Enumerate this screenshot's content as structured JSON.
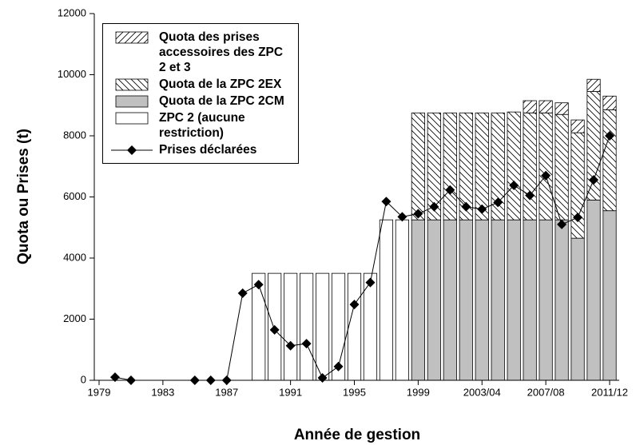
{
  "chart_data": {
    "type": "bar",
    "x_label": "Année de gestion",
    "y_label": "Quota ou Prises (t)",
    "categories": [
      "1979",
      null,
      null,
      null,
      "1983",
      null,
      null,
      null,
      "1987",
      null,
      null,
      null,
      "1991",
      null,
      null,
      null,
      "1995",
      null,
      null,
      null,
      "1999",
      null,
      null,
      null,
      "2003/04",
      null,
      null,
      null,
      "2007/08",
      null,
      null,
      null,
      "2011/12"
    ],
    "stacked": true,
    "series": [
      {
        "name": "ZPC 2 (aucune restriction)",
        "color": "#ffffff",
        "pattern": "solid",
        "values": [
          null,
          null,
          null,
          null,
          null,
          null,
          null,
          null,
          null,
          null,
          3500,
          3500,
          3500,
          3500,
          3500,
          3500,
          3500,
          3500,
          5250,
          5250,
          null,
          null,
          null,
          null,
          null,
          null,
          null,
          null,
          null,
          null,
          null,
          null,
          null
        ]
      },
      {
        "name": "Quota de la ZPC 2CM",
        "color": "#c0c0c0",
        "pattern": "solid",
        "values": [
          null,
          null,
          null,
          null,
          null,
          null,
          null,
          null,
          null,
          null,
          null,
          null,
          null,
          null,
          null,
          null,
          null,
          null,
          null,
          null,
          5250,
          5250,
          5250,
          5250,
          5250,
          5250,
          5250,
          5250,
          5250,
          5250,
          4650,
          5900,
          5550
        ]
      },
      {
        "name": "Quota de la ZPC 2EX",
        "color": "#000000",
        "pattern": "hatch-down",
        "values": [
          null,
          null,
          null,
          null,
          null,
          null,
          null,
          null,
          null,
          null,
          null,
          null,
          null,
          null,
          null,
          null,
          null,
          null,
          null,
          null,
          3500,
          3500,
          3500,
          3500,
          3500,
          3500,
          3530,
          3500,
          3500,
          3450,
          3450,
          3550,
          3300
        ]
      },
      {
        "name": "Quota des prises accessoires des ZPC 2 et 3",
        "color": "#000000",
        "pattern": "hatch-up",
        "values": [
          null,
          null,
          null,
          null,
          null,
          null,
          null,
          null,
          null,
          null,
          null,
          null,
          null,
          null,
          null,
          null,
          null,
          null,
          null,
          null,
          null,
          null,
          null,
          null,
          null,
          null,
          null,
          400,
          400,
          380,
          420,
          400,
          450
        ]
      },
      {
        "name": "Prises déclarées",
        "type": "line",
        "color": "#000000",
        "marker": "diamond",
        "values": [
          null,
          100,
          0,
          null,
          null,
          null,
          0,
          0,
          0,
          2850,
          3130,
          1650,
          1130,
          1200,
          80,
          450,
          2480,
          3200,
          5850,
          5350,
          5450,
          5680,
          6230,
          5680,
          5600,
          5820,
          6380,
          6050,
          6700,
          5100,
          5330,
          6560,
          8000
        ]
      }
    ],
    "ylim": [
      0,
      12000
    ],
    "yticks": [
      0,
      2000,
      4000,
      6000,
      8000,
      10000,
      12000
    ],
    "legend": "upper left"
  }
}
